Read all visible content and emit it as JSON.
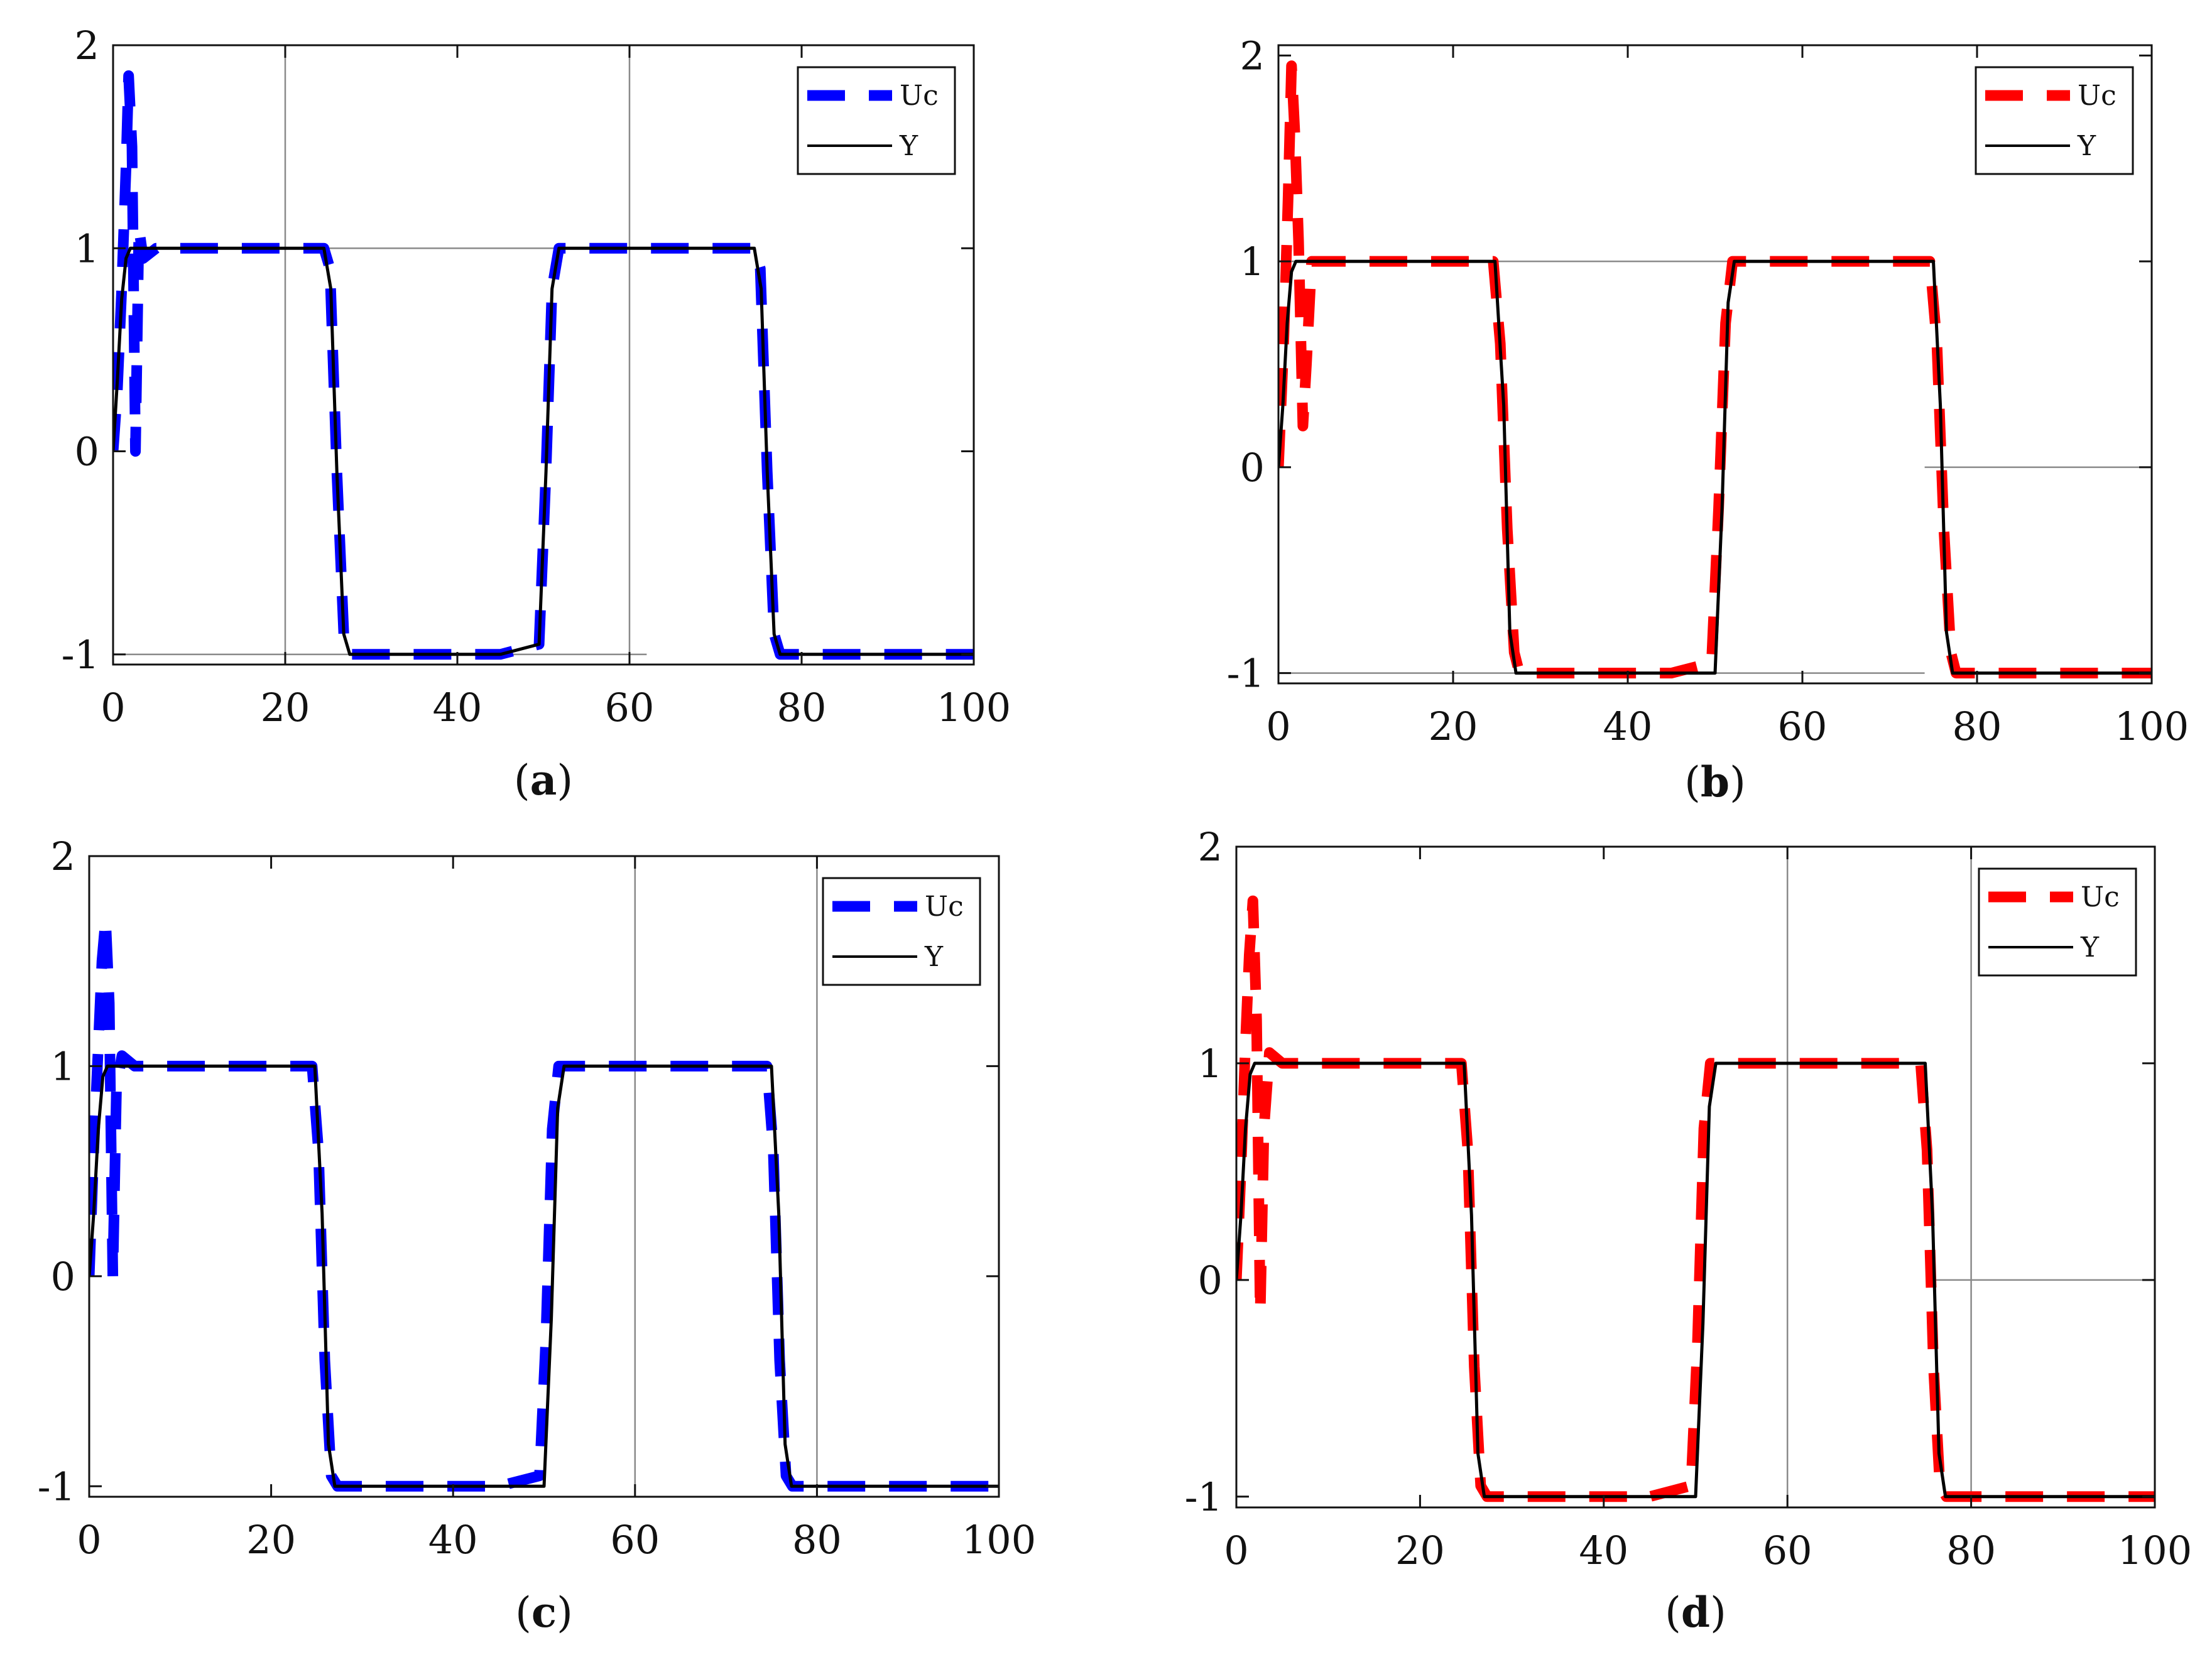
{
  "colors": {
    "axis": "#111111",
    "grid": "#8a8a8a",
    "y_line": "#000000"
  },
  "chart_data": [
    {
      "panel": "a",
      "caption": {
        "open": "(",
        "letter": "a",
        "close": ")"
      },
      "type": "line",
      "xlim": [
        0,
        100
      ],
      "ylim": [
        -1.05,
        2
      ],
      "xticks": [
        0,
        20,
        40,
        60,
        80,
        100
      ],
      "yticks": [
        -1,
        0,
        1,
        2
      ],
      "grid_x": [
        20,
        60
      ],
      "grid_y": [
        {
          "y": 1,
          "x": [
            20,
            60
          ]
        },
        {
          "y": -1,
          "x": [
            0,
            62
          ]
        }
      ],
      "legend": {
        "position": "top-right"
      },
      "series": [
        {
          "name": "Uc",
          "color": "#0000ff",
          "style": "dashed",
          "x": [
            0,
            0.5,
            1,
            1.5,
            1.8,
            2.2,
            2.6,
            3.0,
            3.5,
            5,
            10,
            24.5,
            25.2,
            26,
            26.8,
            27.5,
            30,
            45,
            49.5,
            50.3,
            51,
            51.8,
            52.5,
            55,
            70,
            74.5,
            75.2,
            76,
            76.8,
            77.5,
            80,
            95,
            100
          ],
          "y": [
            0,
            0.3,
            0.8,
            1.4,
            1.85,
            1.5,
            0.0,
            1.1,
            0.95,
            1.0,
            1.0,
            1.0,
            0.9,
            -0.1,
            -0.9,
            -1.0,
            -1.0,
            -1.0,
            -0.95,
            -0.1,
            0.8,
            1.0,
            1.0,
            1.0,
            1.0,
            1.0,
            0.9,
            -0.1,
            -0.9,
            -1.0,
            -1.0,
            -1.0,
            -1.0
          ]
        },
        {
          "name": "Y",
          "color": "#000000",
          "style": "solid",
          "x": [
            0,
            0.5,
            1,
            1.5,
            2,
            3,
            5,
            10,
            24.5,
            25.3,
            26,
            26.8,
            27.5,
            30,
            45,
            49.5,
            50.3,
            51,
            51.8,
            52.5,
            55,
            70,
            74.5,
            75.3,
            76,
            76.8,
            77.5,
            80,
            95,
            100
          ],
          "y": [
            0,
            0.35,
            0.75,
            0.95,
            1.0,
            1.0,
            1.0,
            1.0,
            1.0,
            0.8,
            -0.1,
            -0.9,
            -1.0,
            -1.0,
            -1.0,
            -0.95,
            -0.1,
            0.8,
            1.0,
            1.0,
            1.0,
            1.0,
            1.0,
            0.8,
            -0.1,
            -0.9,
            -1.0,
            -1.0,
            -1.0,
            -1.0
          ]
        }
      ]
    },
    {
      "panel": "b",
      "caption": {
        "open": "(",
        "letter": "b",
        "close": ")"
      },
      "type": "line",
      "xlim": [
        0,
        100
      ],
      "ylim": [
        -1.05,
        2.05
      ],
      "xticks": [
        0,
        20,
        40,
        60,
        80,
        100
      ],
      "yticks": [
        -1,
        0,
        1,
        2
      ],
      "grid_x": [],
      "grid_y": [
        {
          "y": 1,
          "x": [
            0,
            74
          ]
        },
        {
          "y": 0,
          "x": [
            74,
            100
          ]
        },
        {
          "y": -1,
          "x": [
            0,
            74
          ]
        }
      ],
      "legend": {
        "position": "top-right"
      },
      "series": [
        {
          "name": "Uc",
          "color": "#ff0000",
          "style": "dashed",
          "x": [
            0,
            0.6,
            1.1,
            1.5,
            1.9,
            2.3,
            2.8,
            3.2,
            3.8,
            5,
            10,
            24.6,
            25.4,
            26.2,
            27,
            27.6,
            30,
            45,
            49.6,
            50.4,
            51.2,
            52,
            52.6,
            55,
            70,
            74.6,
            75.4,
            76.2,
            77,
            77.6,
            80,
            95,
            100
          ],
          "y": [
            0,
            0.6,
            1.3,
            1.95,
            1.6,
            1.1,
            0.2,
            0.5,
            1.0,
            1.0,
            1.0,
            1.0,
            0.6,
            -0.3,
            -0.9,
            -1.0,
            -1.0,
            -1.0,
            -0.95,
            -0.2,
            0.7,
            1.0,
            1.0,
            1.0,
            1.0,
            1.0,
            0.6,
            -0.3,
            -0.9,
            -1.0,
            -1.0,
            -1.0,
            -1.0
          ]
        },
        {
          "name": "Y",
          "color": "#000000",
          "style": "solid",
          "x": [
            0,
            0.5,
            1,
            1.5,
            2,
            3,
            5,
            10,
            24.8,
            25.8,
            26.5,
            27.2,
            30,
            45,
            50,
            50.8,
            51.5,
            52.2,
            55,
            70,
            75,
            75.8,
            76.5,
            77.2,
            80,
            95,
            100
          ],
          "y": [
            0,
            0.3,
            0.7,
            0.95,
            1.0,
            1.0,
            1.0,
            1.0,
            1.0,
            0.3,
            -0.8,
            -1.0,
            -1.0,
            -1.0,
            -1.0,
            -0.2,
            0.8,
            1.0,
            1.0,
            1.0,
            1.0,
            0.3,
            -0.8,
            -1.0,
            -1.0,
            -1.0,
            -1.0
          ]
        }
      ]
    },
    {
      "panel": "c",
      "caption": {
        "open": "(",
        "letter": "c",
        "close": ")"
      },
      "type": "line",
      "xlim": [
        0,
        100
      ],
      "ylim": [
        -1.05,
        2
      ],
      "xticks": [
        0,
        20,
        40,
        60,
        80,
        100
      ],
      "yticks": [
        -1,
        0,
        1,
        2
      ],
      "grid_x": [
        60,
        80
      ],
      "grid_y": [],
      "legend": {
        "position": "top-right"
      },
      "series": [
        {
          "name": "Uc",
          "color": "#0000ff",
          "style": "dashed",
          "x": [
            0,
            0.5,
            1,
            1.4,
            1.8,
            2.2,
            2.6,
            3.0,
            3.6,
            5,
            10,
            24.5,
            25.2,
            25.9,
            26.6,
            27.3,
            30,
            45,
            49.5,
            50.2,
            50.9,
            51.6,
            52.3,
            55,
            70,
            74.5,
            75.2,
            75.9,
            76.6,
            77.3,
            80,
            95,
            100
          ],
          "y": [
            0,
            0.6,
            1.1,
            1.5,
            1.7,
            1.3,
            0.0,
            0.9,
            1.05,
            1.0,
            1.0,
            1.0,
            0.6,
            -0.4,
            -0.95,
            -1.0,
            -1.0,
            -1.0,
            -0.95,
            -0.3,
            0.7,
            1.0,
            1.0,
            1.0,
            1.0,
            1.0,
            0.6,
            -0.4,
            -0.95,
            -1.0,
            -1.0,
            -1.0,
            -1.0
          ]
        },
        {
          "name": "Y",
          "color": "#000000",
          "style": "solid",
          "x": [
            0,
            0.5,
            1,
            1.5,
            2,
            3,
            5,
            10,
            24.8,
            25.6,
            26.3,
            27,
            30,
            45,
            50,
            50.8,
            51.5,
            52.2,
            55,
            70,
            75,
            75.8,
            76.5,
            77.2,
            80,
            95,
            100
          ],
          "y": [
            0,
            0.3,
            0.7,
            0.95,
            1.0,
            1.0,
            1.0,
            1.0,
            1.0,
            0.3,
            -0.8,
            -1.0,
            -1.0,
            -1.0,
            -1.0,
            -0.2,
            0.8,
            1.0,
            1.0,
            1.0,
            1.0,
            0.3,
            -0.8,
            -1.0,
            -1.0,
            -1.0,
            -1.0
          ]
        }
      ]
    },
    {
      "panel": "d",
      "caption": {
        "open": "(",
        "letter": "d",
        "close": ")"
      },
      "type": "line",
      "xlim": [
        0,
        100
      ],
      "ylim": [
        -1.05,
        2
      ],
      "xticks": [
        0,
        20,
        40,
        60,
        80,
        100
      ],
      "yticks": [
        -1,
        0,
        1,
        2
      ],
      "grid_x": [
        60,
        80
      ],
      "grid_y": [
        {
          "y": 0,
          "x": [
            76,
            100
          ]
        }
      ],
      "legend": {
        "position": "top-right"
      },
      "series": [
        {
          "name": "Uc",
          "color": "#ff0000",
          "style": "dashed",
          "x": [
            0,
            0.5,
            1,
            1.4,
            1.8,
            2.2,
            2.6,
            3.0,
            3.6,
            5,
            10,
            24.5,
            25.2,
            25.9,
            26.6,
            27.3,
            30,
            45,
            49.5,
            50.2,
            50.9,
            51.6,
            52.3,
            55,
            70,
            74.5,
            75.2,
            75.9,
            76.6,
            77.3,
            80,
            95,
            100
          ],
          "y": [
            0,
            0.5,
            1.1,
            1.5,
            1.75,
            1.2,
            -0.15,
            0.7,
            1.05,
            1.0,
            1.0,
            1.0,
            0.6,
            -0.4,
            -0.95,
            -1.0,
            -1.0,
            -1.0,
            -0.95,
            -0.3,
            0.7,
            1.0,
            1.0,
            1.0,
            1.0,
            1.0,
            0.6,
            -0.4,
            -0.95,
            -1.0,
            -1.0,
            -1.0,
            -1.0
          ]
        },
        {
          "name": "Y",
          "color": "#000000",
          "style": "solid",
          "x": [
            0,
            0.5,
            1,
            1.5,
            2,
            3,
            5,
            10,
            24.8,
            25.6,
            26.3,
            27,
            30,
            45,
            50,
            50.8,
            51.5,
            52.2,
            55,
            70,
            75,
            75.8,
            76.5,
            77.2,
            80,
            95,
            100
          ],
          "y": [
            0,
            0.3,
            0.7,
            0.95,
            1.0,
            1.0,
            1.0,
            1.0,
            1.0,
            0.3,
            -0.8,
            -1.0,
            -1.0,
            -1.0,
            -1.0,
            -0.2,
            0.8,
            1.0,
            1.0,
            1.0,
            1.0,
            0.3,
            -0.8,
            -1.0,
            -1.0,
            -1.0,
            -1.0
          ]
        }
      ]
    }
  ]
}
